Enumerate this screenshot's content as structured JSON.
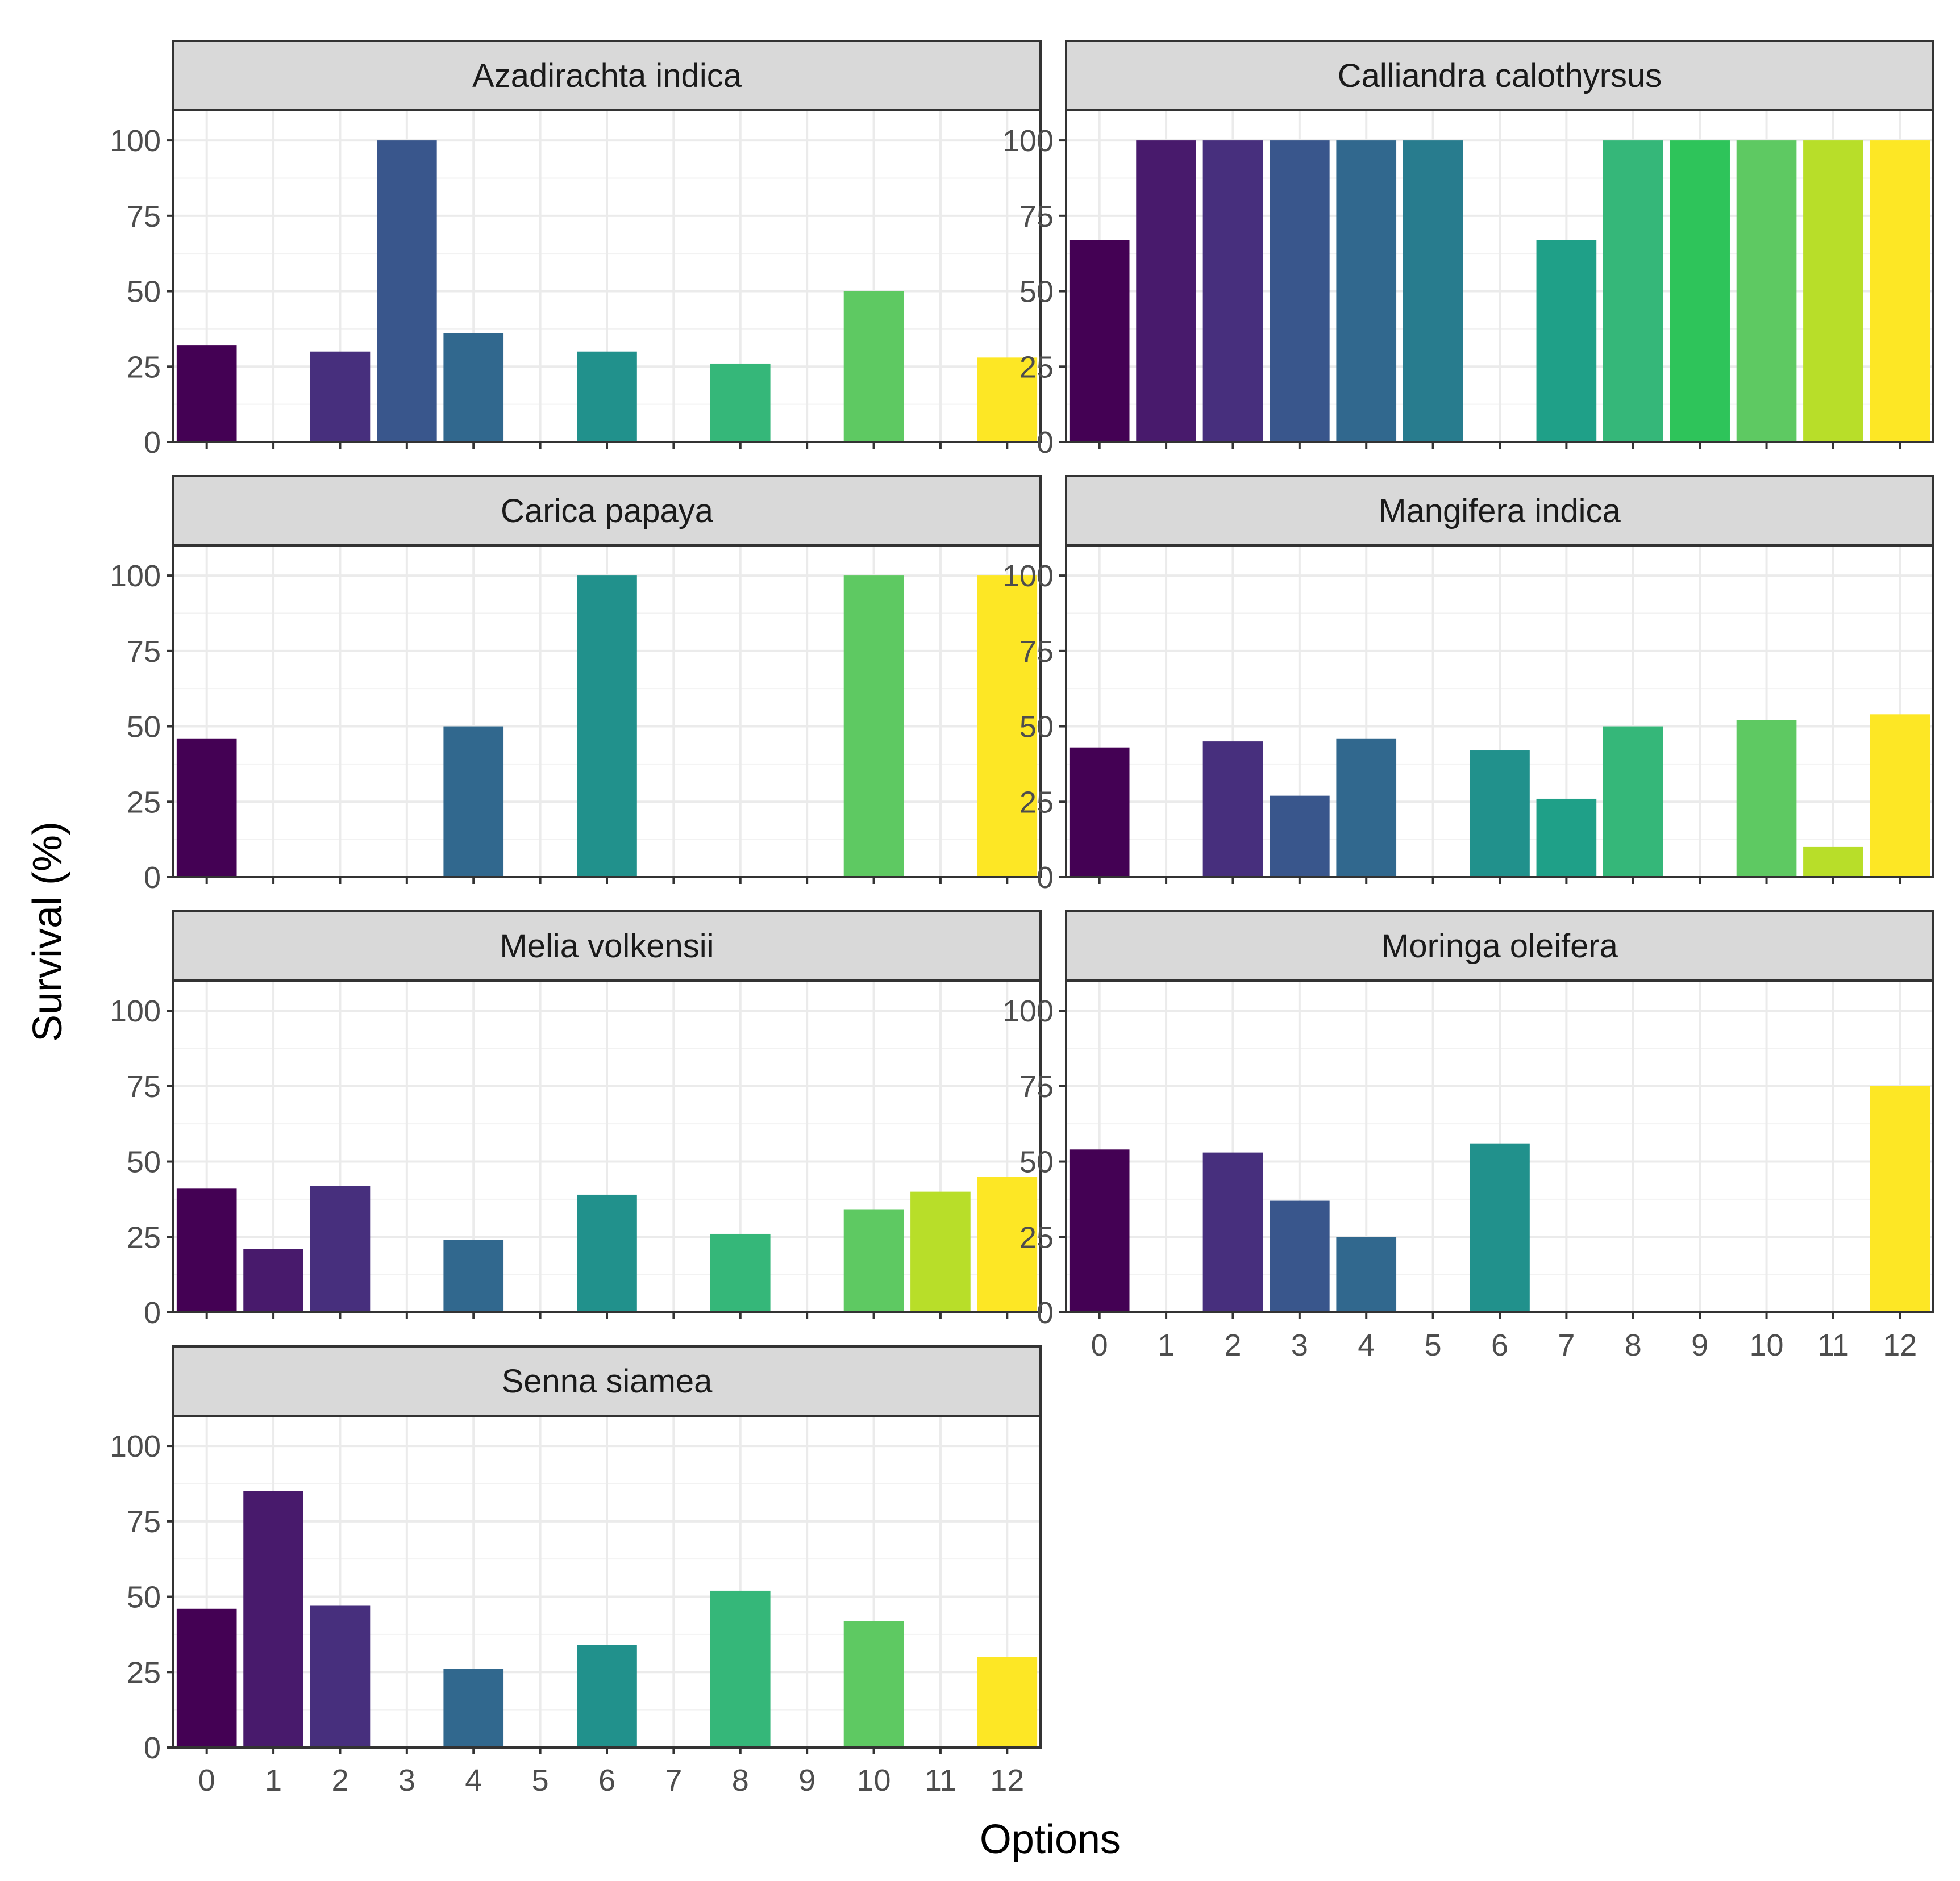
{
  "chart_data": {
    "type": "bar",
    "layout": "facet_wrap",
    "xlabel": "Options",
    "ylabel": "Survival (%)",
    "ylim": [
      0,
      110
    ],
    "y_ticks": [
      0,
      25,
      50,
      75,
      100
    ],
    "x_categories": [
      "0",
      "1",
      "2",
      "3",
      "4",
      "5",
      "6",
      "7",
      "8",
      "9",
      "10",
      "11",
      "12"
    ],
    "grid": true,
    "colors": {
      "0": "#440154",
      "1": "#481a6c",
      "2": "#472f7d",
      "3": "#39568c",
      "4": "#31688e",
      "5": "#287c8e",
      "6": "#21918c",
      "7": "#1fa088",
      "8": "#35b779",
      "9": "#2ec45a",
      "10": "#5ec962",
      "11": "#b8de29",
      "12": "#fde725"
    },
    "panels": [
      {
        "title": "Azadirachta indica",
        "values": {
          "0": 32,
          "2": 30,
          "3": 100,
          "4": 36,
          "6": 30,
          "8": 26,
          "10": 50,
          "12": 28
        }
      },
      {
        "title": "Calliandra calothyrsus",
        "values": {
          "0": 67,
          "1": 100,
          "2": 100,
          "3": 100,
          "4": 100,
          "5": 100,
          "7": 67,
          "8": 100,
          "9": 100,
          "10": 100,
          "11": 100,
          "12": 100
        }
      },
      {
        "title": "Carica papaya",
        "values": {
          "0": 46,
          "4": 50,
          "6": 100,
          "10": 100,
          "12": 100
        }
      },
      {
        "title": "Mangifera indica",
        "values": {
          "0": 43,
          "2": 45,
          "3": 27,
          "4": 46,
          "6": 42,
          "7": 26,
          "8": 50,
          "10": 52,
          "11": 10,
          "12": 54
        }
      },
      {
        "title": "Melia volkensii",
        "values": {
          "0": 41,
          "1": 21,
          "2": 42,
          "4": 24,
          "6": 39,
          "8": 26,
          "10": 34,
          "11": 40,
          "12": 45
        }
      },
      {
        "title": "Moringa oleifera",
        "values": {
          "0": 54,
          "2": 53,
          "3": 37,
          "4": 25,
          "6": 56,
          "12": 75
        }
      },
      {
        "title": "Senna siamea",
        "values": {
          "0": 46,
          "1": 85,
          "2": 47,
          "4": 26,
          "6": 34,
          "8": 52,
          "10": 42,
          "12": 30
        }
      }
    ]
  }
}
